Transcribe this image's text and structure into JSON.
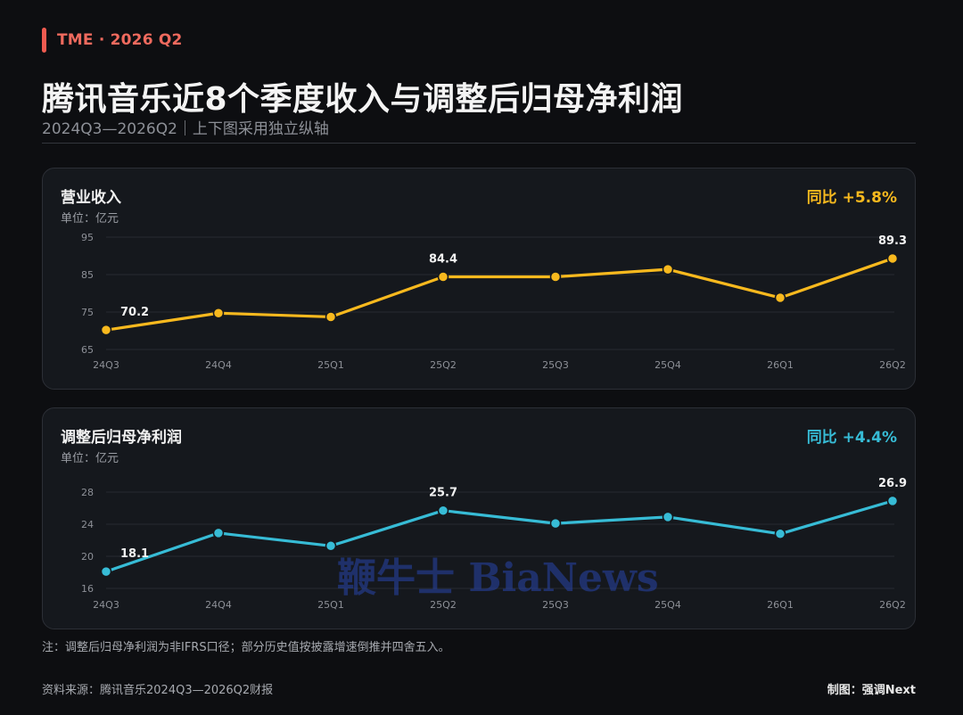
{
  "header": {
    "tag": "TME · 2026 Q2",
    "title": "腾讯音乐近8个季度收入与调整后归母净利润",
    "subtitle": "2024Q3—2026Q2｜上下图采用独立纵轴"
  },
  "colors": {
    "revenue": "#f8b91e",
    "profit": "#37bcd6",
    "accent": "#ef5b50"
  },
  "chart_data": [
    {
      "type": "line",
      "title": "营业收入",
      "unit": "单位：亿元",
      "yoy": "同比 +5.8%",
      "categories": [
        "24Q3",
        "24Q4",
        "25Q1",
        "25Q2",
        "25Q3",
        "25Q4",
        "26Q1",
        "26Q2"
      ],
      "series": [
        {
          "values": [
            70.2,
            74.7,
            73.7,
            84.4,
            84.4,
            86.4,
            78.8,
            89.3
          ]
        }
      ],
      "data_labels": [
        {
          "index": 0,
          "text": "70.2"
        },
        {
          "index": 3,
          "text": "84.4"
        },
        {
          "index": 7,
          "text": "89.3"
        }
      ],
      "ylim": [
        65,
        95
      ],
      "yticks": [
        65,
        75,
        85,
        95
      ],
      "grid": true
    },
    {
      "type": "line",
      "title": "调整后归母净利润",
      "unit": "单位：亿元",
      "yoy": "同比 +4.4%",
      "categories": [
        "24Q3",
        "24Q4",
        "25Q1",
        "25Q2",
        "25Q3",
        "25Q4",
        "26Q1",
        "26Q2"
      ],
      "series": [
        {
          "values": [
            18.1,
            22.9,
            21.3,
            25.7,
            24.1,
            24.9,
            22.8,
            26.9
          ]
        }
      ],
      "data_labels": [
        {
          "index": 0,
          "text": "18.1"
        },
        {
          "index": 3,
          "text": "25.7"
        },
        {
          "index": 7,
          "text": "26.9"
        }
      ],
      "ylim": [
        16,
        28
      ],
      "yticks": [
        16,
        20,
        24,
        28
      ],
      "grid": true
    }
  ],
  "footer": {
    "note": "注：调整后归母净利润为非IFRS口径；部分历史值按披露增速倒推并四舍五入。",
    "source": "资料来源：腾讯音乐2024Q3—2026Q2财报",
    "credit": "制图：强调Next"
  },
  "watermark": "鞭牛士 BiaNews"
}
